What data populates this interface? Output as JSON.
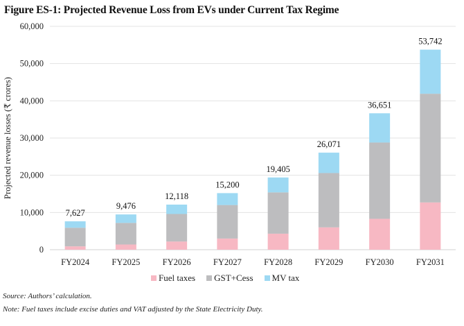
{
  "chart_data": {
    "type": "bar",
    "stacked": true,
    "title": "Figure ES-1: Projected Revenue Loss from EVs under Current Tax Regime",
    "xlabel": "",
    "ylabel": "Projected revenue losses (₹ crores)",
    "ylim": [
      0,
      60000
    ],
    "yticks": [
      0,
      10000,
      20000,
      30000,
      40000,
      50000,
      60000
    ],
    "ytick_labels": [
      "0",
      "10,000",
      "20,000",
      "30,000",
      "40,000",
      "50,000",
      "60,000"
    ],
    "grid": true,
    "legend_position": "bottom",
    "categories": [
      "FY2024",
      "FY2025",
      "FY2026",
      "FY2027",
      "FY2028",
      "FY2029",
      "FY2030",
      "FY2031"
    ],
    "series": [
      {
        "name": "Fuel taxes",
        "color": "#F7B8C3",
        "values": [
          900,
          1400,
          2200,
          3000,
          4300,
          6000,
          8300,
          12700
        ]
      },
      {
        "name": "GST+Cess",
        "color": "#BDBDBF",
        "values": [
          5000,
          5800,
          7400,
          9000,
          11100,
          14600,
          20500,
          29200
        ]
      },
      {
        "name": "MV tax",
        "color": "#9DD9F3",
        "values": [
          1727,
          2276,
          2518,
          3200,
          4005,
          5471,
          7851,
          11842
        ]
      }
    ],
    "totals": [
      7627,
      9476,
      12118,
      15200,
      19405,
      26071,
      36651,
      53742
    ],
    "total_labels": [
      "7,627",
      "9,476",
      "12,118",
      "15,200",
      "19,405",
      "26,071",
      "36,651",
      "53,742"
    ]
  },
  "legend": {
    "items": [
      {
        "label": "Fuel taxes",
        "color": "#F7B8C3"
      },
      {
        "label": "GST+Cess",
        "color": "#BDBDBF"
      },
      {
        "label": "MV tax",
        "color": "#9DD9F3"
      }
    ]
  },
  "footer": {
    "source": "Source: Authors’ calculation.",
    "note": "Note: Fuel taxes include excise duties and VAT adjusted by the State Electricity Duty."
  }
}
